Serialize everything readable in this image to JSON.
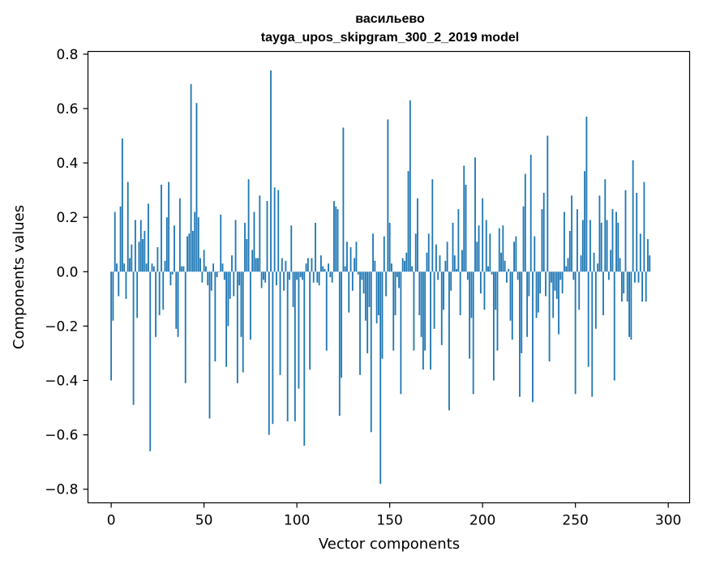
{
  "chart_data": {
    "type": "bar",
    "title": "васильево",
    "subtitle": "tayga_upos_skipgram_300_2_2019 model",
    "xlabel": "Vector components",
    "ylabel": "Components values",
    "xlim": [
      -12.5,
      311.5
    ],
    "ylim": [
      -0.85,
      0.81
    ],
    "xticks": [
      0,
      50,
      100,
      150,
      200,
      250,
      300
    ],
    "yticks": [
      -0.8,
      -0.6,
      -0.4,
      -0.2,
      0.0,
      0.2,
      0.4,
      0.6,
      0.8
    ],
    "ytick_labels": [
      "−0.8",
      "−0.6",
      "−0.4",
      "−0.2",
      "0.0",
      "0.2",
      "0.4",
      "0.6",
      "0.8"
    ],
    "bar_color": "#1f77b4",
    "grid": false,
    "values": [
      -0.4,
      -0.18,
      0.22,
      0.03,
      -0.09,
      0.24,
      0.49,
      0.03,
      -0.1,
      0.33,
      0.05,
      0.1,
      -0.49,
      0.19,
      -0.17,
      0.11,
      0.19,
      0.12,
      0.15,
      0.03,
      0.25,
      -0.66,
      0.03,
      0.02,
      -0.24,
      0.09,
      -0.16,
      0.32,
      -0.14,
      0.04,
      0.2,
      0.33,
      -0.05,
      -0.01,
      0.17,
      -0.21,
      -0.24,
      0.27,
      0.02,
      0.02,
      -0.41,
      0.13,
      0.14,
      0.69,
      0.15,
      0.22,
      0.62,
      0.2,
      0.05,
      -0.04,
      0.08,
      0.02,
      -0.05,
      -0.54,
      -0.07,
      0.03,
      -0.33,
      -0.02,
      0.0,
      0.21,
      0.03,
      -0.03,
      -0.35,
      -0.2,
      -0.1,
      0.06,
      -0.09,
      0.19,
      -0.41,
      -0.05,
      -0.24,
      -0.37,
      0.18,
      0.12,
      0.34,
      -0.25,
      0.08,
      0.22,
      0.05,
      0.05,
      0.28,
      -0.06,
      -0.03,
      -0.04,
      0.26,
      -0.6,
      0.74,
      -0.56,
      0.31,
      -0.05,
      0.3,
      -0.38,
      0.05,
      -0.07,
      0.04,
      -0.55,
      -0.03,
      0.17,
      -0.13,
      -0.55,
      -0.03,
      -0.43,
      -0.02,
      -0.03,
      -0.64,
      0.03,
      0.05,
      -0.36,
      0.05,
      -0.04,
      0.18,
      -0.04,
      -0.05,
      0.06,
      0.02,
      0.01,
      -0.29,
      0.03,
      -0.02,
      -0.04,
      0.26,
      0.24,
      0.23,
      -0.53,
      -0.39,
      0.53,
      0.02,
      0.11,
      -0.15,
      0.09,
      -0.07,
      0.05,
      0.11,
      -0.01,
      -0.38,
      -0.03,
      -0.08,
      -0.18,
      -0.3,
      -0.13,
      -0.59,
      0.14,
      0.04,
      -0.19,
      -0.16,
      -0.78,
      -0.32,
      0.13,
      -0.09,
      0.56,
      0.18,
      0.03,
      -0.29,
      -0.16,
      -0.02,
      -0.06,
      -0.45,
      0.05,
      0.04,
      0.07,
      0.37,
      0.63,
      0.02,
      -0.29,
      0.14,
      0.27,
      -0.16,
      -0.24,
      -0.36,
      -0.29,
      0.07,
      0.14,
      -0.36,
      0.34,
      -0.21,
      0.1,
      -0.03,
      0.06,
      -0.27,
      -0.14,
      0.04,
      0.11,
      -0.51,
      -0.07,
      0.18,
      0.06,
      0.01,
      0.23,
      -0.16,
      0.08,
      0.39,
      0.32,
      -0.03,
      -0.32,
      -0.17,
      -0.45,
      0.42,
      0.11,
      0.17,
      -0.08,
      0.27,
      -0.14,
      0.19,
      0.02,
      0.14,
      -0.01,
      -0.4,
      -0.14,
      -0.29,
      0.16,
      0.07,
      0.17,
      0.04,
      -0.04,
      0.01,
      -0.18,
      -0.25,
      0.11,
      0.13,
      -0.03,
      -0.46,
      -0.3,
      0.24,
      0.36,
      -0.24,
      -0.09,
      0.43,
      -0.48,
      0.13,
      -0.17,
      -0.15,
      -0.08,
      0.23,
      0.29,
      -0.09,
      0.5,
      -0.33,
      -0.04,
      -0.17,
      -0.07,
      -0.1,
      -0.23,
      -0.03,
      -0.08,
      0.22,
      0.02,
      0.05,
      0.15,
      0.28,
      -0.03,
      -0.45,
      0.23,
      -0.14,
      0.06,
      0.19,
      0.37,
      0.57,
      -0.35,
      0.19,
      -0.46,
      0.07,
      -0.21,
      0.03,
      0.28,
      0.18,
      -0.16,
      0.34,
      0.19,
      -0.03,
      0.08,
      0.23,
      -0.4,
      0.22,
      0.18,
      0.05,
      -0.11,
      -0.08,
      0.3,
      -0.11,
      -0.24,
      -0.25,
      0.41,
      -0.04,
      0.29,
      -0.04,
      0.14,
      -0.11,
      0.33,
      -0.11,
      0.12,
      0.06
    ]
  }
}
